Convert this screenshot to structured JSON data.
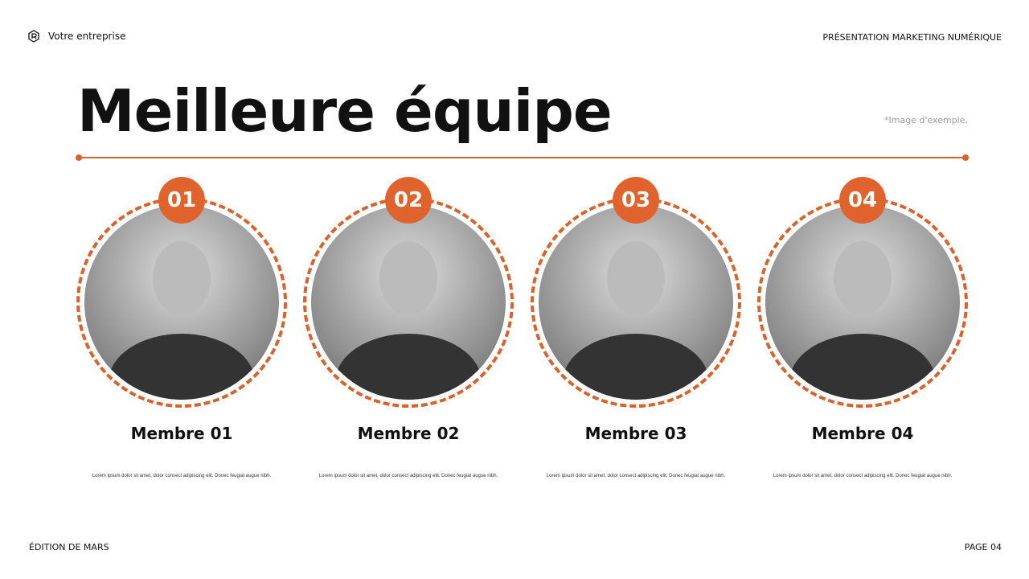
{
  "header": {
    "brand": "Votre entreprise",
    "presentation": "PRÉSENTATION MARKETING NUMÉRIQUE"
  },
  "title": "Meilleure équipe",
  "note": "*Image d'exemple.",
  "accent": "#e0622c",
  "members": [
    {
      "number": "01",
      "name": "Membre 01",
      "desc": "Lorem ipsum dolor sit amet, dolor consect adipiscing elit. Donec feugiat augue nibh."
    },
    {
      "number": "02",
      "name": "Membre 02",
      "desc": "Lorem ipsum dolor sit amet, dolor consect adipiscing elit. Donec feugiat augue nibh."
    },
    {
      "number": "03",
      "name": "Membre 03",
      "desc": "Lorem ipsum dolor sit amet, dolor consect adipiscing elit. Donec feugiat augue nibh."
    },
    {
      "number": "04",
      "name": "Membre 04",
      "desc": "Lorem ipsum dolor sit amet, dolor consect adipiscing elit. Donec feugiat augue nibh."
    }
  ],
  "footer": {
    "edition": "ÉDITION DE MARS",
    "page": "PAGE 04"
  }
}
